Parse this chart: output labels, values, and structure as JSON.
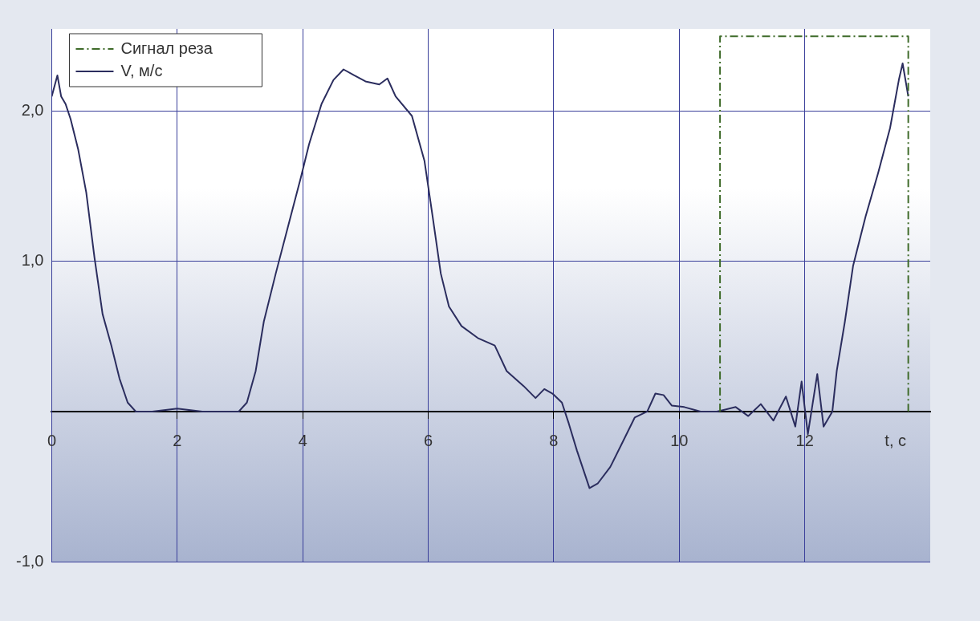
{
  "chart_data": {
    "type": "line",
    "xlabel": "t, c",
    "xlim": [
      0,
      14
    ],
    "xticks": [
      0,
      2,
      4,
      6,
      8,
      10,
      12
    ],
    "ylim": [
      -1,
      2.55
    ],
    "yticks": [
      {
        "value": -1,
        "label": "-1,0"
      },
      {
        "value": 0,
        "label": null
      },
      {
        "value": 1,
        "label": "1,0"
      },
      {
        "value": 2,
        "label": "2,0"
      }
    ],
    "grid": true,
    "legend": "top left",
    "marker": "none",
    "series": [
      {
        "name": "Сигнал реза",
        "color": "#3f6b2a",
        "line_style": "dashed",
        "x": [
          10.65,
          10.65,
          13.65,
          13.65
        ],
        "values": [
          0,
          2.5,
          2.5,
          0
        ]
      },
      {
        "name": "V, м/с",
        "color": "#2b2d5e",
        "line_style": "solid",
        "x": [
          0,
          0.09,
          0.15,
          0.22,
          0.3,
          0.42,
          0.55,
          0.68,
          0.81,
          0.95,
          1.08,
          1.21,
          1.34,
          1.6,
          2.0,
          2.4,
          2.8,
          2.98,
          3.11,
          3.25,
          3.38,
          3.57,
          3.77,
          3.97,
          4.1,
          4.3,
          4.49,
          4.65,
          4.82,
          5.0,
          5.22,
          5.35,
          5.48,
          5.74,
          5.94,
          6.07,
          6.2,
          6.33,
          6.53,
          6.79,
          7.06,
          7.25,
          7.52,
          7.71,
          7.85,
          7.98,
          8.13,
          8.24,
          8.37,
          8.57,
          8.7,
          8.9,
          9.09,
          9.29,
          9.49,
          9.62,
          9.75,
          9.88,
          10.08,
          10.34,
          10.6,
          10.9,
          11.1,
          11.3,
          11.5,
          11.7,
          11.85,
          11.95,
          12.05,
          12.2,
          12.3,
          12.44,
          12.51,
          12.64,
          12.77,
          12.97,
          13.17,
          13.36,
          13.5,
          13.56,
          13.65
        ],
        "values": [
          2.1,
          2.24,
          2.1,
          2.05,
          1.95,
          1.75,
          1.46,
          1.03,
          0.65,
          0.44,
          0.22,
          0.06,
          0,
          0,
          0.02,
          0,
          0,
          0,
          0.06,
          0.27,
          0.6,
          0.92,
          1.24,
          1.56,
          1.78,
          2.05,
          2.21,
          2.28,
          2.24,
          2.2,
          2.18,
          2.22,
          2.1,
          1.97,
          1.67,
          1.3,
          0.92,
          0.7,
          0.57,
          0.49,
          0.44,
          0.27,
          0.17,
          0.09,
          0.15,
          0.12,
          0.06,
          -0.08,
          -0.26,
          -0.51,
          -0.48,
          -0.37,
          -0.21,
          -0.04,
          0,
          0.12,
          0.11,
          0.04,
          0.03,
          0,
          0,
          0.03,
          -0.03,
          0.05,
          -0.06,
          0.1,
          -0.1,
          0.2,
          -0.15,
          0.25,
          -0.1,
          0,
          0.27,
          0.6,
          0.97,
          1.3,
          1.59,
          1.89,
          2.21,
          2.32,
          2.1
        ]
      }
    ]
  }
}
